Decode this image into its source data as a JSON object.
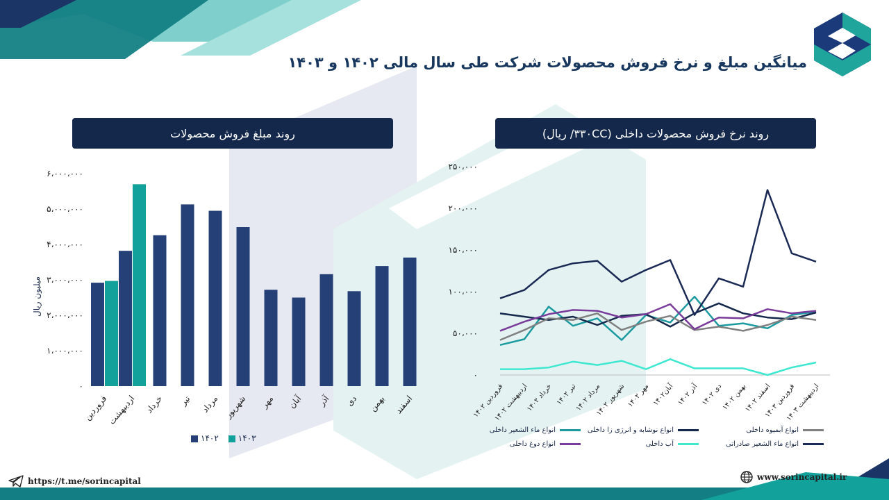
{
  "page": {
    "title": "میانگین مبلغ و نرخ فروش محصولات شرکت طی سال مالی ۱۴۰۲ و ۱۴۰۳",
    "telegram_link": "https://t.me/sorincapital",
    "website": "www.sorincapital.ir",
    "colors": {
      "navy": "#14284b",
      "teal": "#0f9a97",
      "bar1402": "#253f77",
      "bar1403": "#13a19b"
    }
  },
  "chart_data": [
    {
      "type": "bar",
      "title": "روند مبلغ فروش محصولات",
      "ylabel": "میلیون ریال",
      "ylim": [
        0,
        6000000
      ],
      "yticks": [
        "۰",
        "۱،۰۰۰،۰۰۰",
        "۲،۰۰۰،۰۰۰",
        "۳،۰۰۰،۰۰۰",
        "۴،۰۰۰،۰۰۰",
        "۵،۰۰۰،۰۰۰",
        "۶،۰۰۰،۰۰۰"
      ],
      "categories": [
        "فروردین",
        "اردیبهشت",
        "خرداد",
        "تیر",
        "مرداد",
        "شهریور",
        "مهر",
        "آبان",
        "آذر",
        "دی",
        "بهمن",
        "اسفند"
      ],
      "series": [
        {
          "name": "۱۴۰۲",
          "color": "#253f77",
          "values": [
            2920000,
            3820000,
            4260000,
            5130000,
            4950000,
            4490000,
            2720000,
            2500000,
            3160000,
            2680000,
            3390000,
            3630000
          ]
        },
        {
          "name": "۱۴۰۳",
          "color": "#13a19b",
          "values": [
            2970000,
            5700000,
            null,
            null,
            null,
            null,
            null,
            null,
            null,
            null,
            null,
            null
          ]
        }
      ],
      "legend": "bottom"
    },
    {
      "type": "line",
      "title": "روند نرخ فروش محصولات داخلی (۳۳۰CC/ ریال)",
      "ylim": [
        0,
        250000
      ],
      "yticks": [
        "۰",
        "۵۰،۰۰۰",
        "۱۰۰،۰۰۰",
        "۱۵۰،۰۰۰",
        "۲۰۰،۰۰۰",
        "۲۵۰،۰۰۰"
      ],
      "x": [
        "فروردین ۱۴۰۲",
        "اردیبهشت ۱۴۰۲",
        "خرداد ۱۴۰۲",
        "تیر ۱۴۰۲",
        "مرداد ۱۴۰۲",
        "شهریور ۱۴۰۲",
        "مهر ۱۴۰۲",
        "آبان۱۴۰۲",
        "آذر ۱۴۰۲",
        "دی ۱۴۰۲",
        "بهمن ۱۴۰۲",
        "اسفند ۱۴۰۲",
        "فروردین ۱۴۰۳",
        "اردیبهشت ۱۴۰۳"
      ],
      "series": [
        {
          "name": "انواع ماء الشعیر داخلی",
          "color": "#1b9aa0",
          "values": [
            36000,
            43000,
            82000,
            59000,
            68000,
            42000,
            72000,
            63000,
            94000,
            59000,
            62000,
            56000,
            72000,
            76000
          ]
        },
        {
          "name": "انواع نوشابه و انرژی زا داخلی",
          "color": "#14284b",
          "values": [
            74000,
            70000,
            66000,
            70000,
            60000,
            71000,
            73000,
            58000,
            74000,
            86000,
            74000,
            69000,
            67000,
            75000
          ]
        },
        {
          "name": "انواع آبمیوه داخلی",
          "color": "#808080",
          "values": [
            42000,
            54000,
            68000,
            66000,
            74000,
            54000,
            64000,
            71000,
            54000,
            58000,
            53000,
            60000,
            70000,
            66000
          ]
        },
        {
          "name": "انواع دوغ داخلی",
          "color": "#7a3c9a",
          "values": [
            53000,
            64000,
            73000,
            78000,
            77000,
            69000,
            73000,
            85000,
            55000,
            69000,
            68000,
            79000,
            74000,
            77000
          ]
        },
        {
          "name": "آب داخلی",
          "color": "#3ee8d0",
          "values": [
            7000,
            7000,
            9000,
            16000,
            12000,
            17000,
            7000,
            19000,
            8000,
            8000,
            8000,
            0,
            9000,
            15000
          ]
        },
        {
          "name": "انواع ماء الشعیر صادراتی",
          "color": "#1a2a55",
          "values": [
            92000,
            102000,
            126000,
            134000,
            137000,
            112000,
            126000,
            138000,
            72000,
            116000,
            106000,
            222000,
            146000,
            136000
          ]
        }
      ],
      "legend": "bottom"
    }
  ]
}
